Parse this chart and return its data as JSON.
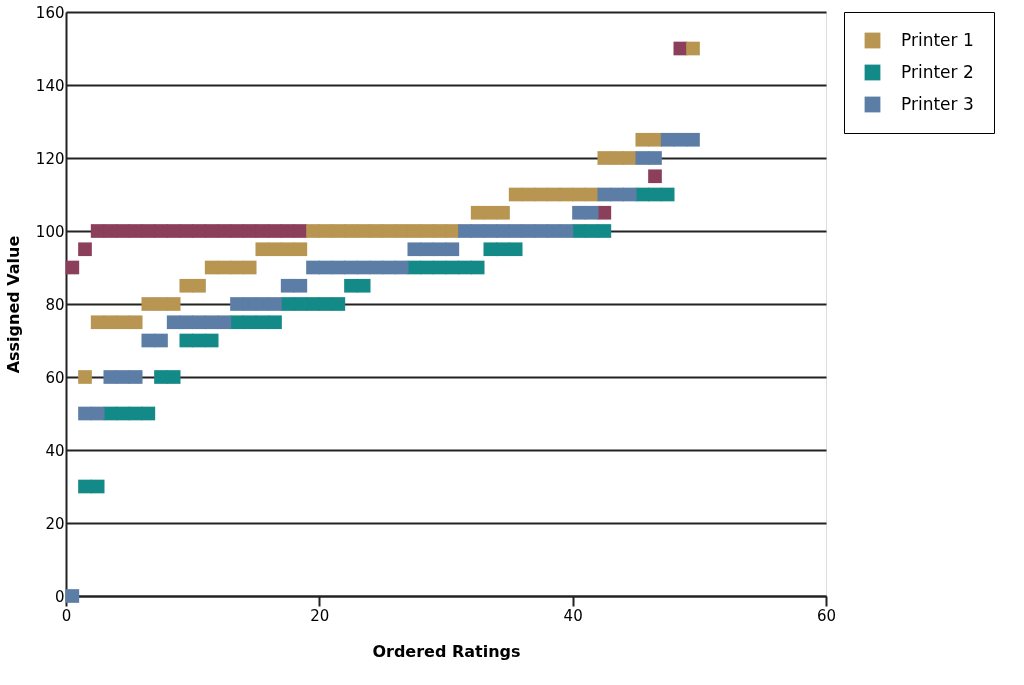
{
  "chart_data": {
    "type": "scatter",
    "marker": "square",
    "xlabel": "Ordered Ratings",
    "ylabel": "Assigned Value",
    "xlim": [
      0,
      60
    ],
    "xticks": [
      0,
      20,
      40,
      60
    ],
    "ylim": [
      0,
      160
    ],
    "yticks": [
      0,
      20,
      40,
      60,
      80,
      100,
      120,
      140,
      160
    ],
    "grid": "y",
    "legend": "right",
    "series": [
      {
        "color": "#8c3f5a",
        "x": [
          0.5,
          1.5,
          2.5,
          3.5,
          4.5,
          5.5,
          6.5,
          7.5,
          8.5,
          9.5,
          10.5,
          11.5,
          12.5,
          13.5,
          14.5,
          15.5,
          16.5,
          17.5,
          18.5,
          42.5,
          46.5,
          48.5
        ],
        "values": [
          90,
          95,
          100,
          100,
          100,
          100,
          100,
          100,
          100,
          100,
          100,
          100,
          100,
          100,
          100,
          100,
          100,
          100,
          100,
          105,
          115,
          150
        ]
      },
      {
        "name": "Printer 1",
        "color": "#b89550",
        "x": [
          1.5,
          2.5,
          3.5,
          4.5,
          5.5,
          6.5,
          7.5,
          8.5,
          9.5,
          10.5,
          11.5,
          12.5,
          13.5,
          14.5,
          15.5,
          16.5,
          17.5,
          18.5,
          19.5,
          20.5,
          21.5,
          22.5,
          23.5,
          24.5,
          25.5,
          26.5,
          27.5,
          28.5,
          29.5,
          30.5,
          32.5,
          33.5,
          34.5,
          35.5,
          36.5,
          37.5,
          38.5,
          39.5,
          40.5,
          41.5,
          42.5,
          43.5,
          44.5,
          45.5,
          46.5,
          49.5
        ],
        "values": [
          60,
          75,
          75,
          75,
          75,
          80,
          80,
          80,
          85,
          85,
          90,
          90,
          90,
          90,
          95,
          95,
          95,
          95,
          100,
          100,
          100,
          100,
          100,
          100,
          100,
          100,
          100,
          100,
          100,
          100,
          105,
          105,
          105,
          110,
          110,
          110,
          110,
          110,
          110,
          110,
          120,
          120,
          120,
          125,
          125,
          150
        ]
      },
      {
        "name": "Printer 2",
        "color": "#148a88",
        "x": [
          1.5,
          2.5,
          3.5,
          4.5,
          5.5,
          6.5,
          7.5,
          8.5,
          9.5,
          10.5,
          11.5,
          13.5,
          14.5,
          15.5,
          16.5,
          17.5,
          18.5,
          19.5,
          20.5,
          21.5,
          22.5,
          23.5,
          27.5,
          28.5,
          29.5,
          30.5,
          31.5,
          32.5,
          33.5,
          34.5,
          35.5,
          40.5,
          41.5,
          42.5,
          45.5,
          46.5,
          47.5
        ],
        "values": [
          30,
          30,
          50,
          50,
          50,
          50,
          60,
          60,
          70,
          70,
          70,
          75,
          75,
          75,
          75,
          80,
          80,
          80,
          80,
          80,
          85,
          85,
          90,
          90,
          90,
          90,
          90,
          90,
          95,
          95,
          95,
          100,
          100,
          100,
          110,
          110,
          110
        ]
      },
      {
        "name": "Printer 3",
        "color": "#5c7ea6",
        "x": [
          0.5,
          1.5,
          2.5,
          3.5,
          4.5,
          5.5,
          6.5,
          7.5,
          8.5,
          9.5,
          10.5,
          11.5,
          12.5,
          13.5,
          14.5,
          15.5,
          16.5,
          17.5,
          18.5,
          19.5,
          20.5,
          21.5,
          22.5,
          23.5,
          24.5,
          25.5,
          26.5,
          27.5,
          28.5,
          29.5,
          30.5,
          31.5,
          32.5,
          33.5,
          34.5,
          35.5,
          36.5,
          37.5,
          38.5,
          39.5,
          40.5,
          41.5,
          42.5,
          43.5,
          44.5,
          45.5,
          46.5,
          47.5,
          48.5,
          49.5
        ],
        "values": [
          0,
          50,
          50,
          60,
          60,
          60,
          70,
          70,
          75,
          75,
          75,
          75,
          75,
          80,
          80,
          80,
          80,
          85,
          85,
          90,
          90,
          90,
          90,
          90,
          90,
          90,
          90,
          95,
          95,
          95,
          95,
          100,
          100,
          100,
          100,
          100,
          100,
          100,
          100,
          100,
          105,
          105,
          110,
          110,
          110,
          120,
          120,
          125,
          125,
          125
        ]
      }
    ]
  }
}
